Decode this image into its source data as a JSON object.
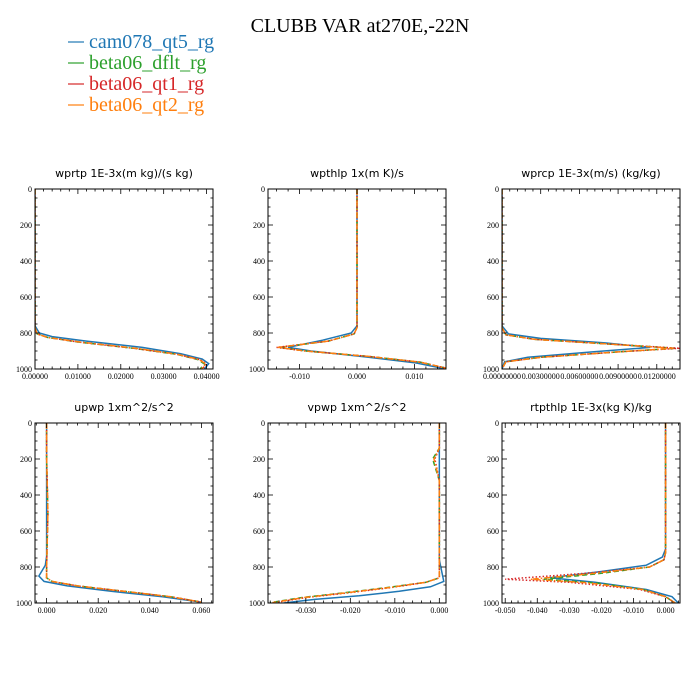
{
  "title": "CLUBB VAR at270E,-22N",
  "legend": [
    {
      "label": "cam078_qt5_rg",
      "color": "#1f77b4",
      "dash": "solid"
    },
    {
      "label": "beta06_dflt_rg",
      "color": "#2ca02c",
      "dash": "dashed"
    },
    {
      "label": "beta06_qt1_rg",
      "color": "#d62728",
      "dash": "dotted"
    },
    {
      "label": "beta06_qt2_rg",
      "color": "#ff7f0e",
      "dash": "dashdot"
    }
  ],
  "chart_data": [
    {
      "type": "line",
      "title": "wprtp  1E-3x(m kg)/(s kg)",
      "xlim": [
        0,
        0.0415
      ],
      "ylim": [
        1000,
        0
      ],
      "xticks": [
        0.0,
        0.01,
        0.02,
        0.03,
        0.04
      ],
      "xtick_labels": [
        "0.00000",
        "0.01000",
        "0.02000",
        "0.03000",
        "0.04000"
      ],
      "yticks": [
        0,
        200,
        400,
        600,
        800,
        1000
      ],
      "series": [
        {
          "name": "cam078_qt5_rg",
          "x": [
            0.0,
            0.0,
            0.001,
            0.004,
            0.012,
            0.025,
            0.034,
            0.039,
            0.0405,
            0.0395
          ],
          "y": [
            0,
            760,
            800,
            820,
            845,
            880,
            915,
            945,
            970,
            1000
          ]
        },
        {
          "name": "beta06_dflt_rg",
          "x": [
            0.0,
            0.0,
            0.0005,
            0.003,
            0.01,
            0.023,
            0.033,
            0.038,
            0.0395,
            0.0385
          ],
          "y": [
            0,
            770,
            805,
            825,
            850,
            885,
            918,
            948,
            972,
            1000
          ]
        },
        {
          "name": "beta06_qt1_rg",
          "x": [
            0.0,
            0.0,
            0.0005,
            0.003,
            0.01,
            0.023,
            0.033,
            0.0385,
            0.04,
            0.039
          ],
          "y": [
            0,
            770,
            805,
            825,
            850,
            885,
            918,
            948,
            972,
            1000
          ]
        },
        {
          "name": "beta06_qt2_rg",
          "x": [
            0.0,
            0.0,
            0.0005,
            0.003,
            0.0105,
            0.0235,
            0.0332,
            0.0383,
            0.0398,
            0.0388
          ],
          "y": [
            0,
            770,
            805,
            825,
            850,
            885,
            918,
            948,
            972,
            1000
          ]
        }
      ]
    },
    {
      "type": "line",
      "title": "wpthlp  1x(m K)/s",
      "xlim": [
        -0.0155,
        0.0155
      ],
      "ylim": [
        1000,
        0
      ],
      "xticks": [
        -0.01,
        0.0,
        0.01
      ],
      "xtick_labels": [
        "-0.010",
        "0.000",
        "0.010"
      ],
      "yticks": [
        0,
        200,
        400,
        600,
        800,
        1000
      ],
      "series": [
        {
          "name": "cam078_qt5_rg",
          "x": [
            0.0,
            0.0,
            0.0,
            -0.001,
            -0.006,
            -0.012,
            -0.008,
            0.002,
            0.01,
            0.0155
          ],
          "y": [
            0,
            300,
            760,
            800,
            840,
            880,
            900,
            935,
            965,
            1000
          ]
        },
        {
          "name": "beta06_dflt_rg",
          "x": [
            0.0,
            0.0,
            0.0,
            -0.0005,
            -0.005,
            -0.0135,
            -0.009,
            0.002,
            0.011,
            0.0155
          ],
          "y": [
            0,
            300,
            770,
            805,
            845,
            880,
            900,
            930,
            962,
            995
          ]
        },
        {
          "name": "beta06_qt1_rg",
          "x": [
            0.0,
            0.0,
            0.0,
            -0.0005,
            -0.005,
            -0.014,
            -0.009,
            0.002,
            0.011,
            0.0155
          ],
          "y": [
            0,
            300,
            770,
            805,
            845,
            880,
            900,
            930,
            962,
            995
          ]
        },
        {
          "name": "beta06_qt2_rg",
          "x": [
            0.0,
            0.0,
            0.0,
            -0.0005,
            -0.005,
            -0.0138,
            -0.009,
            0.002,
            0.011,
            0.0155
          ],
          "y": [
            0,
            300,
            770,
            805,
            845,
            880,
            900,
            930,
            962,
            995
          ]
        }
      ]
    },
    {
      "type": "line",
      "title": "wprcp  1E-3x(m/s) (kg/kg)",
      "xlim": [
        0,
        0.0138
      ],
      "ylim": [
        1000,
        0
      ],
      "xticks": [
        0.0,
        0.003,
        0.006,
        0.009,
        0.012
      ],
      "xtick_labels": [
        "0.00000000",
        "0.00300000",
        "0.00600000",
        "0.00900000",
        "0.01200000"
      ],
      "yticks": [
        0,
        200,
        400,
        600,
        800,
        1000
      ],
      "series": [
        {
          "name": "cam078_qt5_rg",
          "x": [
            0.0,
            0.0,
            0.0005,
            0.003,
            0.008,
            0.0115,
            0.007,
            0.002,
            0.0002,
            0.0
          ],
          "y": [
            0,
            760,
            805,
            830,
            855,
            880,
            905,
            935,
            960,
            1000
          ]
        },
        {
          "name": "beta06_dflt_rg",
          "x": [
            0.0,
            0.0,
            0.0003,
            0.0025,
            0.008,
            0.0135,
            0.009,
            0.003,
            0.0003,
            0.0
          ],
          "y": [
            0,
            770,
            810,
            835,
            860,
            885,
            905,
            935,
            960,
            1000
          ]
        },
        {
          "name": "beta06_qt1_rg",
          "x": [
            0.0,
            0.0,
            0.0003,
            0.0025,
            0.008,
            0.0138,
            0.009,
            0.003,
            0.0003,
            0.0
          ],
          "y": [
            0,
            770,
            810,
            835,
            860,
            885,
            905,
            935,
            960,
            1000
          ]
        },
        {
          "name": "beta06_qt2_rg",
          "x": [
            0.0,
            0.0,
            0.0003,
            0.0025,
            0.008,
            0.0133,
            0.009,
            0.003,
            0.0003,
            0.0
          ],
          "y": [
            0,
            770,
            810,
            835,
            860,
            885,
            905,
            935,
            960,
            1000
          ]
        }
      ]
    },
    {
      "type": "line",
      "title": "upwp  1xm^2/s^2",
      "xlim": [
        -0.0045,
        0.0645
      ],
      "ylim": [
        1000,
        0
      ],
      "xticks": [
        0.0,
        0.02,
        0.04,
        0.06
      ],
      "xtick_labels": [
        "0.000",
        "0.020",
        "0.040",
        "0.060"
      ],
      "yticks": [
        0,
        200,
        400,
        600,
        800,
        1000
      ],
      "series": [
        {
          "name": "cam078_qt5_rg",
          "x": [
            0.0,
            0.0,
            0.0,
            -0.0005,
            -0.003,
            -0.001,
            0.008,
            0.025,
            0.045,
            0.06
          ],
          "y": [
            0,
            200,
            740,
            790,
            850,
            880,
            905,
            935,
            965,
            995
          ]
        },
        {
          "name": "beta06_dflt_rg",
          "x": [
            0.0,
            0.0,
            0.0005,
            0.0,
            0.0,
            0.002,
            0.012,
            0.03,
            0.048,
            0.06
          ],
          "y": [
            0,
            190,
            500,
            800,
            860,
            880,
            905,
            935,
            965,
            995
          ]
        },
        {
          "name": "beta06_qt1_rg",
          "x": [
            0.0,
            0.0,
            0.0005,
            0.0,
            0.0,
            0.002,
            0.012,
            0.03,
            0.048,
            0.06
          ],
          "y": [
            0,
            190,
            500,
            800,
            860,
            880,
            905,
            935,
            965,
            995
          ]
        },
        {
          "name": "beta06_qt2_rg",
          "x": [
            0.0,
            0.0,
            0.0005,
            0.0,
            0.0,
            0.002,
            0.012,
            0.03,
            0.048,
            0.06
          ],
          "y": [
            0,
            190,
            500,
            800,
            860,
            880,
            905,
            935,
            965,
            995
          ]
        }
      ]
    },
    {
      "type": "line",
      "title": "vpwp  1xm^2/s^2",
      "xlim": [
        -0.0385,
        0.0015
      ],
      "ylim": [
        1000,
        0
      ],
      "xticks": [
        -0.03,
        -0.02,
        -0.01,
        0.0
      ],
      "xtick_labels": [
        "-0.030",
        "-0.020",
        "-0.010",
        "0.000"
      ],
      "yticks": [
        0,
        200,
        400,
        600,
        800,
        1000
      ],
      "series": [
        {
          "name": "cam078_qt5_rg",
          "x": [
            0.0,
            0.0,
            0.0,
            0.0005,
            0.001,
            -0.002,
            -0.009,
            -0.018,
            -0.028,
            -0.035
          ],
          "y": [
            0,
            300,
            760,
            820,
            880,
            910,
            935,
            960,
            980,
            1000
          ]
        },
        {
          "name": "beta06_dflt_rg",
          "x": [
            0.0,
            0.0,
            -0.0015,
            0.0,
            0.0,
            -0.003,
            -0.012,
            -0.022,
            -0.031,
            -0.038
          ],
          "y": [
            0,
            140,
            200,
            320,
            860,
            885,
            915,
            945,
            970,
            998
          ]
        },
        {
          "name": "beta06_qt1_rg",
          "x": [
            0.0,
            0.0,
            -0.001,
            0.0,
            0.0,
            -0.003,
            -0.011,
            -0.021,
            -0.03,
            -0.037
          ],
          "y": [
            0,
            140,
            200,
            320,
            860,
            885,
            915,
            945,
            970,
            998
          ]
        },
        {
          "name": "beta06_qt2_rg",
          "x": [
            0.0,
            0.0,
            -0.0012,
            0.0,
            0.0,
            -0.003,
            -0.0115,
            -0.0215,
            -0.0305,
            -0.0375
          ],
          "y": [
            0,
            140,
            200,
            320,
            860,
            885,
            915,
            945,
            970,
            998
          ]
        }
      ]
    },
    {
      "type": "line",
      "title": "rtpthlp  1E-3x(kg K)/kg",
      "xlim": [
        -0.051,
        0.0045
      ],
      "ylim": [
        1000,
        0
      ],
      "xticks": [
        -0.05,
        -0.04,
        -0.03,
        -0.02,
        -0.01,
        0.0
      ],
      "xtick_labels": [
        "-0.050",
        "-0.040",
        "-0.030",
        "-0.020",
        "-0.010",
        "0.000"
      ],
      "yticks": [
        0,
        200,
        400,
        600,
        800,
        1000
      ],
      "series": [
        {
          "name": "cam078_qt5_rg",
          "x": [
            0.0,
            0.0,
            -0.001,
            -0.006,
            -0.02,
            -0.036,
            -0.022,
            -0.006,
            0.002,
            0.004
          ],
          "y": [
            0,
            700,
            745,
            790,
            825,
            860,
            885,
            925,
            965,
            1000
          ]
        },
        {
          "name": "beta06_dflt_rg",
          "x": [
            0.0,
            0.0,
            -0.0005,
            -0.005,
            -0.02,
            -0.038,
            -0.022,
            -0.007,
            0.0,
            0.003
          ],
          "y": [
            0,
            720,
            760,
            800,
            835,
            868,
            888,
            925,
            965,
            1000
          ]
        },
        {
          "name": "beta06_qt1_rg",
          "x": [
            0.0,
            0.0,
            -0.0005,
            -0.005,
            -0.025,
            -0.05,
            -0.03,
            -0.008,
            0.0,
            0.003
          ],
          "y": [
            0,
            720,
            760,
            800,
            835,
            868,
            885,
            925,
            965,
            1000
          ]
        },
        {
          "name": "beta06_qt2_rg",
          "x": [
            0.0,
            0.0,
            -0.0005,
            -0.005,
            -0.022,
            -0.042,
            -0.025,
            -0.007,
            0.0,
            0.003
          ],
          "y": [
            0,
            720,
            760,
            800,
            835,
            868,
            887,
            925,
            965,
            1000
          ]
        }
      ]
    }
  ]
}
